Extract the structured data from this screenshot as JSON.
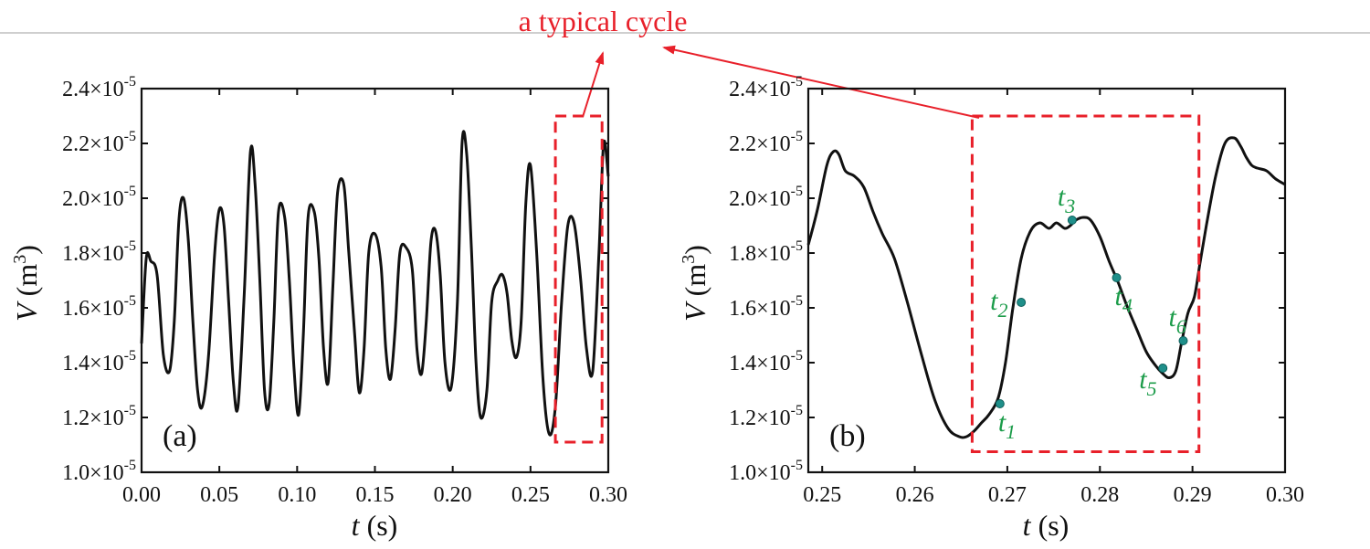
{
  "annotation": {
    "text": "a typical cycle",
    "color": "#e8202a"
  },
  "chart_data": [
    {
      "type": "line",
      "panel": "(a)",
      "xlabel": "t (s)",
      "ylabel": "V (m3)",
      "xlim": [
        0.0,
        0.3
      ],
      "ylim": [
        1e-05,
        2.4e-05
      ],
      "xticks": [
        0.0,
        0.05,
        0.1,
        0.15,
        0.2,
        0.25,
        0.3
      ],
      "xtick_labels": [
        "0.00",
        "0.05",
        "0.10",
        "0.15",
        "0.20",
        "0.25",
        "0.30"
      ],
      "yticks": [
        1e-05,
        1.2e-05,
        1.4e-05,
        1.6e-05,
        1.8e-05,
        2e-05,
        2.2e-05,
        2.4e-05
      ],
      "ytick_mantissas": [
        "1.0",
        "1.2",
        "1.4",
        "1.6",
        "1.8",
        "2.0",
        "2.2",
        "2.4"
      ],
      "ytick_exponent": "-5",
      "line_color": "#111111",
      "highlight_box": {
        "x": [
          0.266,
          0.296
        ],
        "y": [
          1.11e-05,
          2.3e-05
        ],
        "color": "#e8202a"
      },
      "series": [
        {
          "name": "V(t)",
          "x": [
            0.0,
            0.003,
            0.006,
            0.01,
            0.014,
            0.018,
            0.021,
            0.024,
            0.027,
            0.03,
            0.033,
            0.036,
            0.039,
            0.043,
            0.047,
            0.05,
            0.053,
            0.056,
            0.059,
            0.062,
            0.066,
            0.07,
            0.073,
            0.076,
            0.079,
            0.082,
            0.085,
            0.088,
            0.092,
            0.095,
            0.098,
            0.101,
            0.104,
            0.107,
            0.111,
            0.114,
            0.117,
            0.12,
            0.123,
            0.126,
            0.13,
            0.133,
            0.137,
            0.14,
            0.143,
            0.146,
            0.15,
            0.154,
            0.157,
            0.16,
            0.163,
            0.166,
            0.17,
            0.174,
            0.177,
            0.18,
            0.183,
            0.186,
            0.189,
            0.192,
            0.195,
            0.199,
            0.203,
            0.206,
            0.209,
            0.212,
            0.215,
            0.218,
            0.222,
            0.225,
            0.229,
            0.232,
            0.235,
            0.238,
            0.241,
            0.244,
            0.247,
            0.25,
            0.254,
            0.258,
            0.262,
            0.266,
            0.27,
            0.274,
            0.278,
            0.282,
            0.286,
            0.29,
            0.294,
            0.297,
            0.3
          ],
          "y": [
            1.47e-05,
            1.78e-05,
            1.77e-05,
            1.72e-05,
            1.43e-05,
            1.37e-05,
            1.55e-05,
            1.92e-05,
            2e-05,
            1.85e-05,
            1.55e-05,
            1.3e-05,
            1.24e-05,
            1.42e-05,
            1.8e-05,
            1.96e-05,
            1.9e-05,
            1.62e-05,
            1.33e-05,
            1.24e-05,
            1.65e-05,
            2.17e-05,
            2.05e-05,
            1.7e-05,
            1.3e-05,
            1.25e-05,
            1.55e-05,
            1.95e-05,
            1.93e-05,
            1.7e-05,
            1.38e-05,
            1.21e-05,
            1.5e-05,
            1.93e-05,
            1.95e-05,
            1.78e-05,
            1.45e-05,
            1.33e-05,
            1.68e-05,
            2.02e-05,
            2.05e-05,
            1.82e-05,
            1.5e-05,
            1.29e-05,
            1.45e-05,
            1.8e-05,
            1.87e-05,
            1.75e-05,
            1.45e-05,
            1.34e-05,
            1.52e-05,
            1.8e-05,
            1.82e-05,
            1.74e-05,
            1.45e-05,
            1.36e-05,
            1.55e-05,
            1.84e-05,
            1.88e-05,
            1.72e-05,
            1.4e-05,
            1.31e-05,
            1.62e-05,
            2.2e-05,
            2.16e-05,
            1.82e-05,
            1.4e-05,
            1.2e-05,
            1.3e-05,
            1.62e-05,
            1.7e-05,
            1.72e-05,
            1.65e-05,
            1.48e-05,
            1.42e-05,
            1.55e-05,
            1.98e-05,
            2.12e-05,
            1.8e-05,
            1.34e-05,
            1.14e-05,
            1.24e-05,
            1.62e-05,
            1.9e-05,
            1.91e-05,
            1.72e-05,
            1.45e-05,
            1.37e-05,
            1.8e-05,
            2.2e-05,
            2.08e-05
          ]
        }
      ]
    },
    {
      "type": "line",
      "panel": "(b)",
      "xlabel": "t (s)",
      "ylabel": "V (m3)",
      "xlim": [
        0.2485,
        0.3
      ],
      "ylim": [
        1e-05,
        2.4e-05
      ],
      "xticks": [
        0.25,
        0.26,
        0.27,
        0.28,
        0.29,
        0.3
      ],
      "xtick_labels": [
        "0.25",
        "0.26",
        "0.27",
        "0.28",
        "0.29",
        "0.30"
      ],
      "yticks": [
        1e-05,
        1.2e-05,
        1.4e-05,
        1.6e-05,
        1.8e-05,
        2e-05,
        2.2e-05,
        2.4e-05
      ],
      "ytick_mantissas": [
        "1.0",
        "1.2",
        "1.4",
        "1.6",
        "1.8",
        "2.0",
        "2.2",
        "2.4"
      ],
      "ytick_exponent": "-5",
      "line_color": "#111111",
      "highlight_box": {
        "x": [
          0.2662,
          0.2907
        ],
        "y": [
          1.075e-05,
          2.3e-05
        ],
        "color": "#e8202a"
      },
      "series": [
        {
          "name": "V(t)",
          "x": [
            0.2485,
            0.2495,
            0.2505,
            0.2512,
            0.2518,
            0.2525,
            0.2535,
            0.2545,
            0.2555,
            0.2565,
            0.2578,
            0.2592,
            0.2608,
            0.2622,
            0.2636,
            0.2648,
            0.2656,
            0.2664,
            0.2672,
            0.268,
            0.269,
            0.2698,
            0.2706,
            0.2715,
            0.2725,
            0.2735,
            0.2745,
            0.2753,
            0.2762,
            0.2768,
            0.2774,
            0.2782,
            0.279,
            0.28,
            0.281,
            0.282,
            0.283,
            0.284,
            0.285,
            0.286,
            0.2868,
            0.2875,
            0.2882,
            0.2888,
            0.2895,
            0.2902,
            0.2908,
            0.2915,
            0.2925,
            0.2935,
            0.2945,
            0.2952,
            0.2958,
            0.2964,
            0.297,
            0.298,
            0.299,
            0.3
          ],
          "y": [
            1.83e-05,
            1.96e-05,
            2.12e-05,
            2.17e-05,
            2.16e-05,
            2.1e-05,
            2.08e-05,
            2.04e-05,
            1.95e-05,
            1.87e-05,
            1.78e-05,
            1.62e-05,
            1.42e-05,
            1.26e-05,
            1.16e-05,
            1.13e-05,
            1.13e-05,
            1.15e-05,
            1.18e-05,
            1.21e-05,
            1.27e-05,
            1.4e-05,
            1.6e-05,
            1.78e-05,
            1.88e-05,
            1.91e-05,
            1.89e-05,
            1.91e-05,
            1.89e-05,
            1.9e-05,
            1.92e-05,
            1.93e-05,
            1.92e-05,
            1.86e-05,
            1.77e-05,
            1.69e-05,
            1.6e-05,
            1.52e-05,
            1.44e-05,
            1.39e-05,
            1.36e-05,
            1.345e-05,
            1.37e-05,
            1.47e-05,
            1.58e-05,
            1.64e-05,
            1.76e-05,
            1.9e-05,
            2.08e-05,
            2.2e-05,
            2.22e-05,
            2.19e-05,
            2.15e-05,
            2.12e-05,
            2.11e-05,
            2.1e-05,
            2.07e-05,
            2.05e-05
          ]
        }
      ],
      "markers": [
        {
          "label": "t",
          "sub": "1",
          "x": 0.2692,
          "y": 1.25e-05,
          "label_side": "below"
        },
        {
          "label": "t",
          "sub": "2",
          "x": 0.2715,
          "y": 1.62e-05,
          "label_side": "left"
        },
        {
          "label": "t",
          "sub": "3",
          "x": 0.277,
          "y": 1.92e-05,
          "label_side": "above"
        },
        {
          "label": "t",
          "sub": "4",
          "x": 0.2818,
          "y": 1.71e-05,
          "label_side": "below"
        },
        {
          "label": "t",
          "sub": "5",
          "x": 0.2868,
          "y": 1.38e-05,
          "label_side": "below-left"
        },
        {
          "label": "t",
          "sub": "6",
          "x": 0.289,
          "y": 1.48e-05,
          "label_side": "above"
        }
      ],
      "marker_color": "#1c9c4a"
    }
  ]
}
